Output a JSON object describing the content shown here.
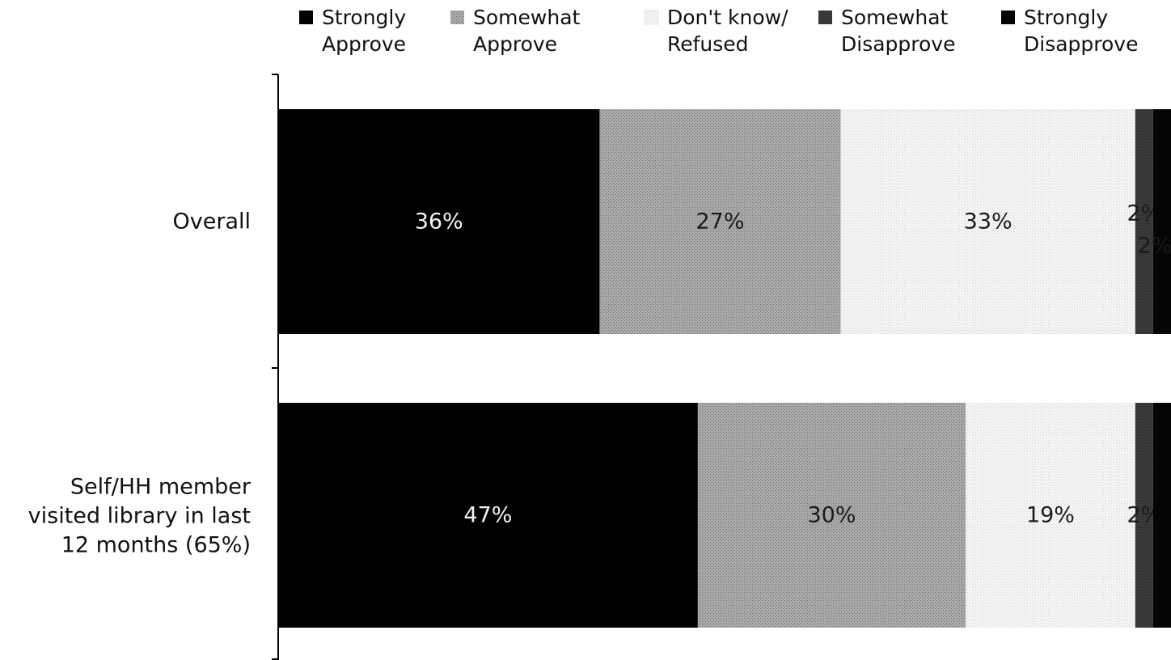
{
  "chart_data": {
    "type": "bar",
    "orientation": "horizontal",
    "stacked": true,
    "percent_stacked": true,
    "legend_position": "top",
    "grid": false,
    "xlim": [
      0,
      100
    ],
    "categories": [
      [
        "Overall"
      ],
      [
        "Self/HH member",
        "visited library in last",
        "12 months (65%)"
      ]
    ],
    "series": [
      {
        "name": [
          "Strongly",
          "Approve"
        ],
        "color": "#000000",
        "label_color": "#f2f2f2",
        "values": [
          36,
          47
        ],
        "labels": [
          "36%",
          "47%"
        ]
      },
      {
        "name": [
          "Somewhat",
          "Approve"
        ],
        "color": "#a9a9a9",
        "label_color": "#1a1a1a",
        "values": [
          27,
          30
        ],
        "labels": [
          "27%",
          "30%"
        ]
      },
      {
        "name": [
          "Don't know/",
          "Refused"
        ],
        "color": "#f5f5f5",
        "label_color": "#1a1a1a",
        "values": [
          33,
          19
        ],
        "labels": [
          "33%",
          "19%"
        ]
      },
      {
        "name": [
          "Somewhat",
          "Disapprove"
        ],
        "color": "#3c3c3c",
        "label_color": "#1a1a1a",
        "values": [
          2,
          2
        ],
        "labels": [
          "2%",
          "2%"
        ]
      },
      {
        "name": [
          "Strongly",
          "Disapprove"
        ],
        "color": "#050505",
        "label_color": "#1a1a1a",
        "values": [
          2,
          2
        ],
        "labels": [
          "2%",
          ""
        ]
      }
    ]
  }
}
